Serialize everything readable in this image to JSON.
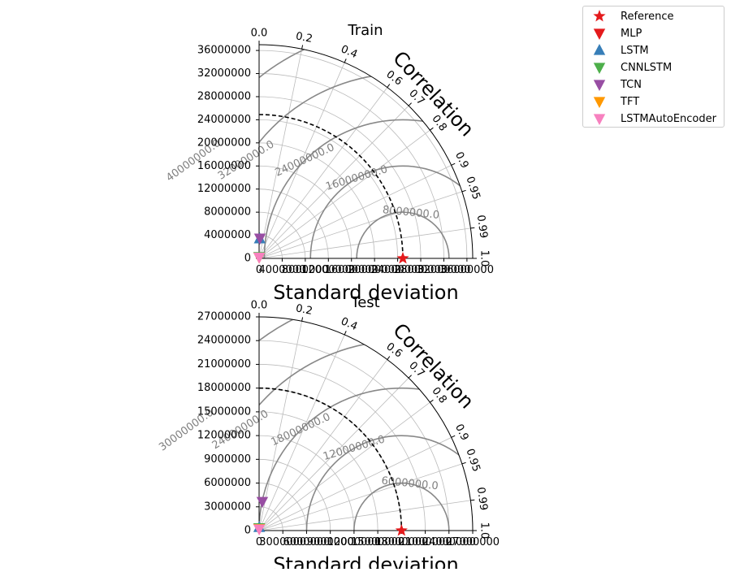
{
  "legend": [
    {
      "label": "Reference",
      "marker": "star",
      "color": "#e41a1c"
    },
    {
      "label": "MLP",
      "marker": "triangle-down",
      "color": "#e41a1c"
    },
    {
      "label": "LSTM",
      "marker": "triangle-up",
      "color": "#377eb8"
    },
    {
      "label": "CNNLSTM",
      "marker": "triangle-down",
      "color": "#4daf4a"
    },
    {
      "label": "TCN",
      "marker": "triangle-down",
      "color": "#984ea3"
    },
    {
      "label": "TFT",
      "marker": "triangle-down",
      "color": "#ff9800"
    },
    {
      "label": "LSTMAutoEncoder",
      "marker": "triangle-down",
      "color": "#f781bf"
    }
  ],
  "chart_data": [
    {
      "type": "scatter",
      "subtype": "taylor-diagram",
      "title": "Train",
      "xlabel": "Standard deviation",
      "corr_label": "Correlation",
      "std_max": 37000000,
      "std_ticks": [
        0,
        4000000,
        8000000,
        12000000,
        16000000,
        20000000,
        24000000,
        28000000,
        32000000,
        36000000
      ],
      "std_tick_labels": [
        "0",
        "4000000",
        "8000000",
        "12000000",
        "16000000",
        "20000000",
        "24000000",
        "28000000",
        "32000000",
        "36000000"
      ],
      "corr_ticks": [
        0.0,
        0.2,
        0.4,
        0.6,
        0.7,
        0.8,
        0.9,
        0.95,
        0.99,
        1.0
      ],
      "corr_tick_labels": [
        "0.0",
        "0.2",
        "0.4",
        "0.6",
        "0.7",
        "0.8",
        "0.9",
        "0.95",
        "0.99",
        "1.0"
      ],
      "reference_std": 24900000,
      "rms_contours": [
        8000000,
        16000000,
        24000000,
        32000000,
        40000000
      ],
      "rms_contour_labels": [
        "8000000.0",
        "16000000.0",
        "24000000.0",
        "32000000.0",
        "40000000.0"
      ],
      "grid": true,
      "points": [
        {
          "series": "Reference",
          "std": 24900000,
          "corr": 1.0
        },
        {
          "series": "MLP",
          "std": 250000,
          "corr": 0.03
        },
        {
          "series": "LSTM",
          "std": 3400000,
          "corr": 0.03
        },
        {
          "series": "CNNLSTM",
          "std": 300000,
          "corr": 0.05
        },
        {
          "series": "TCN",
          "std": 3500000,
          "corr": 0.04
        },
        {
          "series": "TFT",
          "std": 200000,
          "corr": 0.05
        },
        {
          "series": "LSTMAutoEncoder",
          "std": 200000,
          "corr": 0.06
        }
      ]
    },
    {
      "type": "scatter",
      "subtype": "taylor-diagram",
      "title": "Test",
      "xlabel": "Standard deviation",
      "corr_label": "Correlation",
      "std_max": 27000000,
      "std_ticks": [
        0,
        3000000,
        6000000,
        9000000,
        12000000,
        15000000,
        18000000,
        21000000,
        24000000,
        27000000
      ],
      "std_tick_labels": [
        "0",
        "3000000",
        "6000000",
        "9000000",
        "12000000",
        "15000000",
        "18000000",
        "21000000",
        "24000000",
        "27000000"
      ],
      "corr_ticks": [
        0.0,
        0.2,
        0.4,
        0.6,
        0.7,
        0.8,
        0.9,
        0.95,
        0.99,
        1.0
      ],
      "corr_tick_labels": [
        "0.0",
        "0.2",
        "0.4",
        "0.6",
        "0.7",
        "0.8",
        "0.9",
        "0.95",
        "0.99",
        "1.0"
      ],
      "reference_std": 18000000,
      "rms_contours": [
        6000000,
        12000000,
        18000000,
        24000000,
        30000000
      ],
      "rms_contour_labels": [
        "6000000.0",
        "12000000.0",
        "18000000.0",
        "24000000.0",
        "30000000.0"
      ],
      "grid": true,
      "points": [
        {
          "series": "Reference",
          "std": 18000000,
          "corr": 1.0
        },
        {
          "series": "MLP",
          "std": 300000,
          "corr": 0.05
        },
        {
          "series": "LSTM",
          "std": 400000,
          "corr": 0.03
        },
        {
          "series": "CNNLSTM",
          "std": 350000,
          "corr": 0.05
        },
        {
          "series": "TCN",
          "std": 3700000,
          "corr": 0.11
        },
        {
          "series": "TFT",
          "std": 250000,
          "corr": 0.05
        },
        {
          "series": "LSTMAutoEncoder",
          "std": 200000,
          "corr": 0.06
        }
      ]
    }
  ]
}
